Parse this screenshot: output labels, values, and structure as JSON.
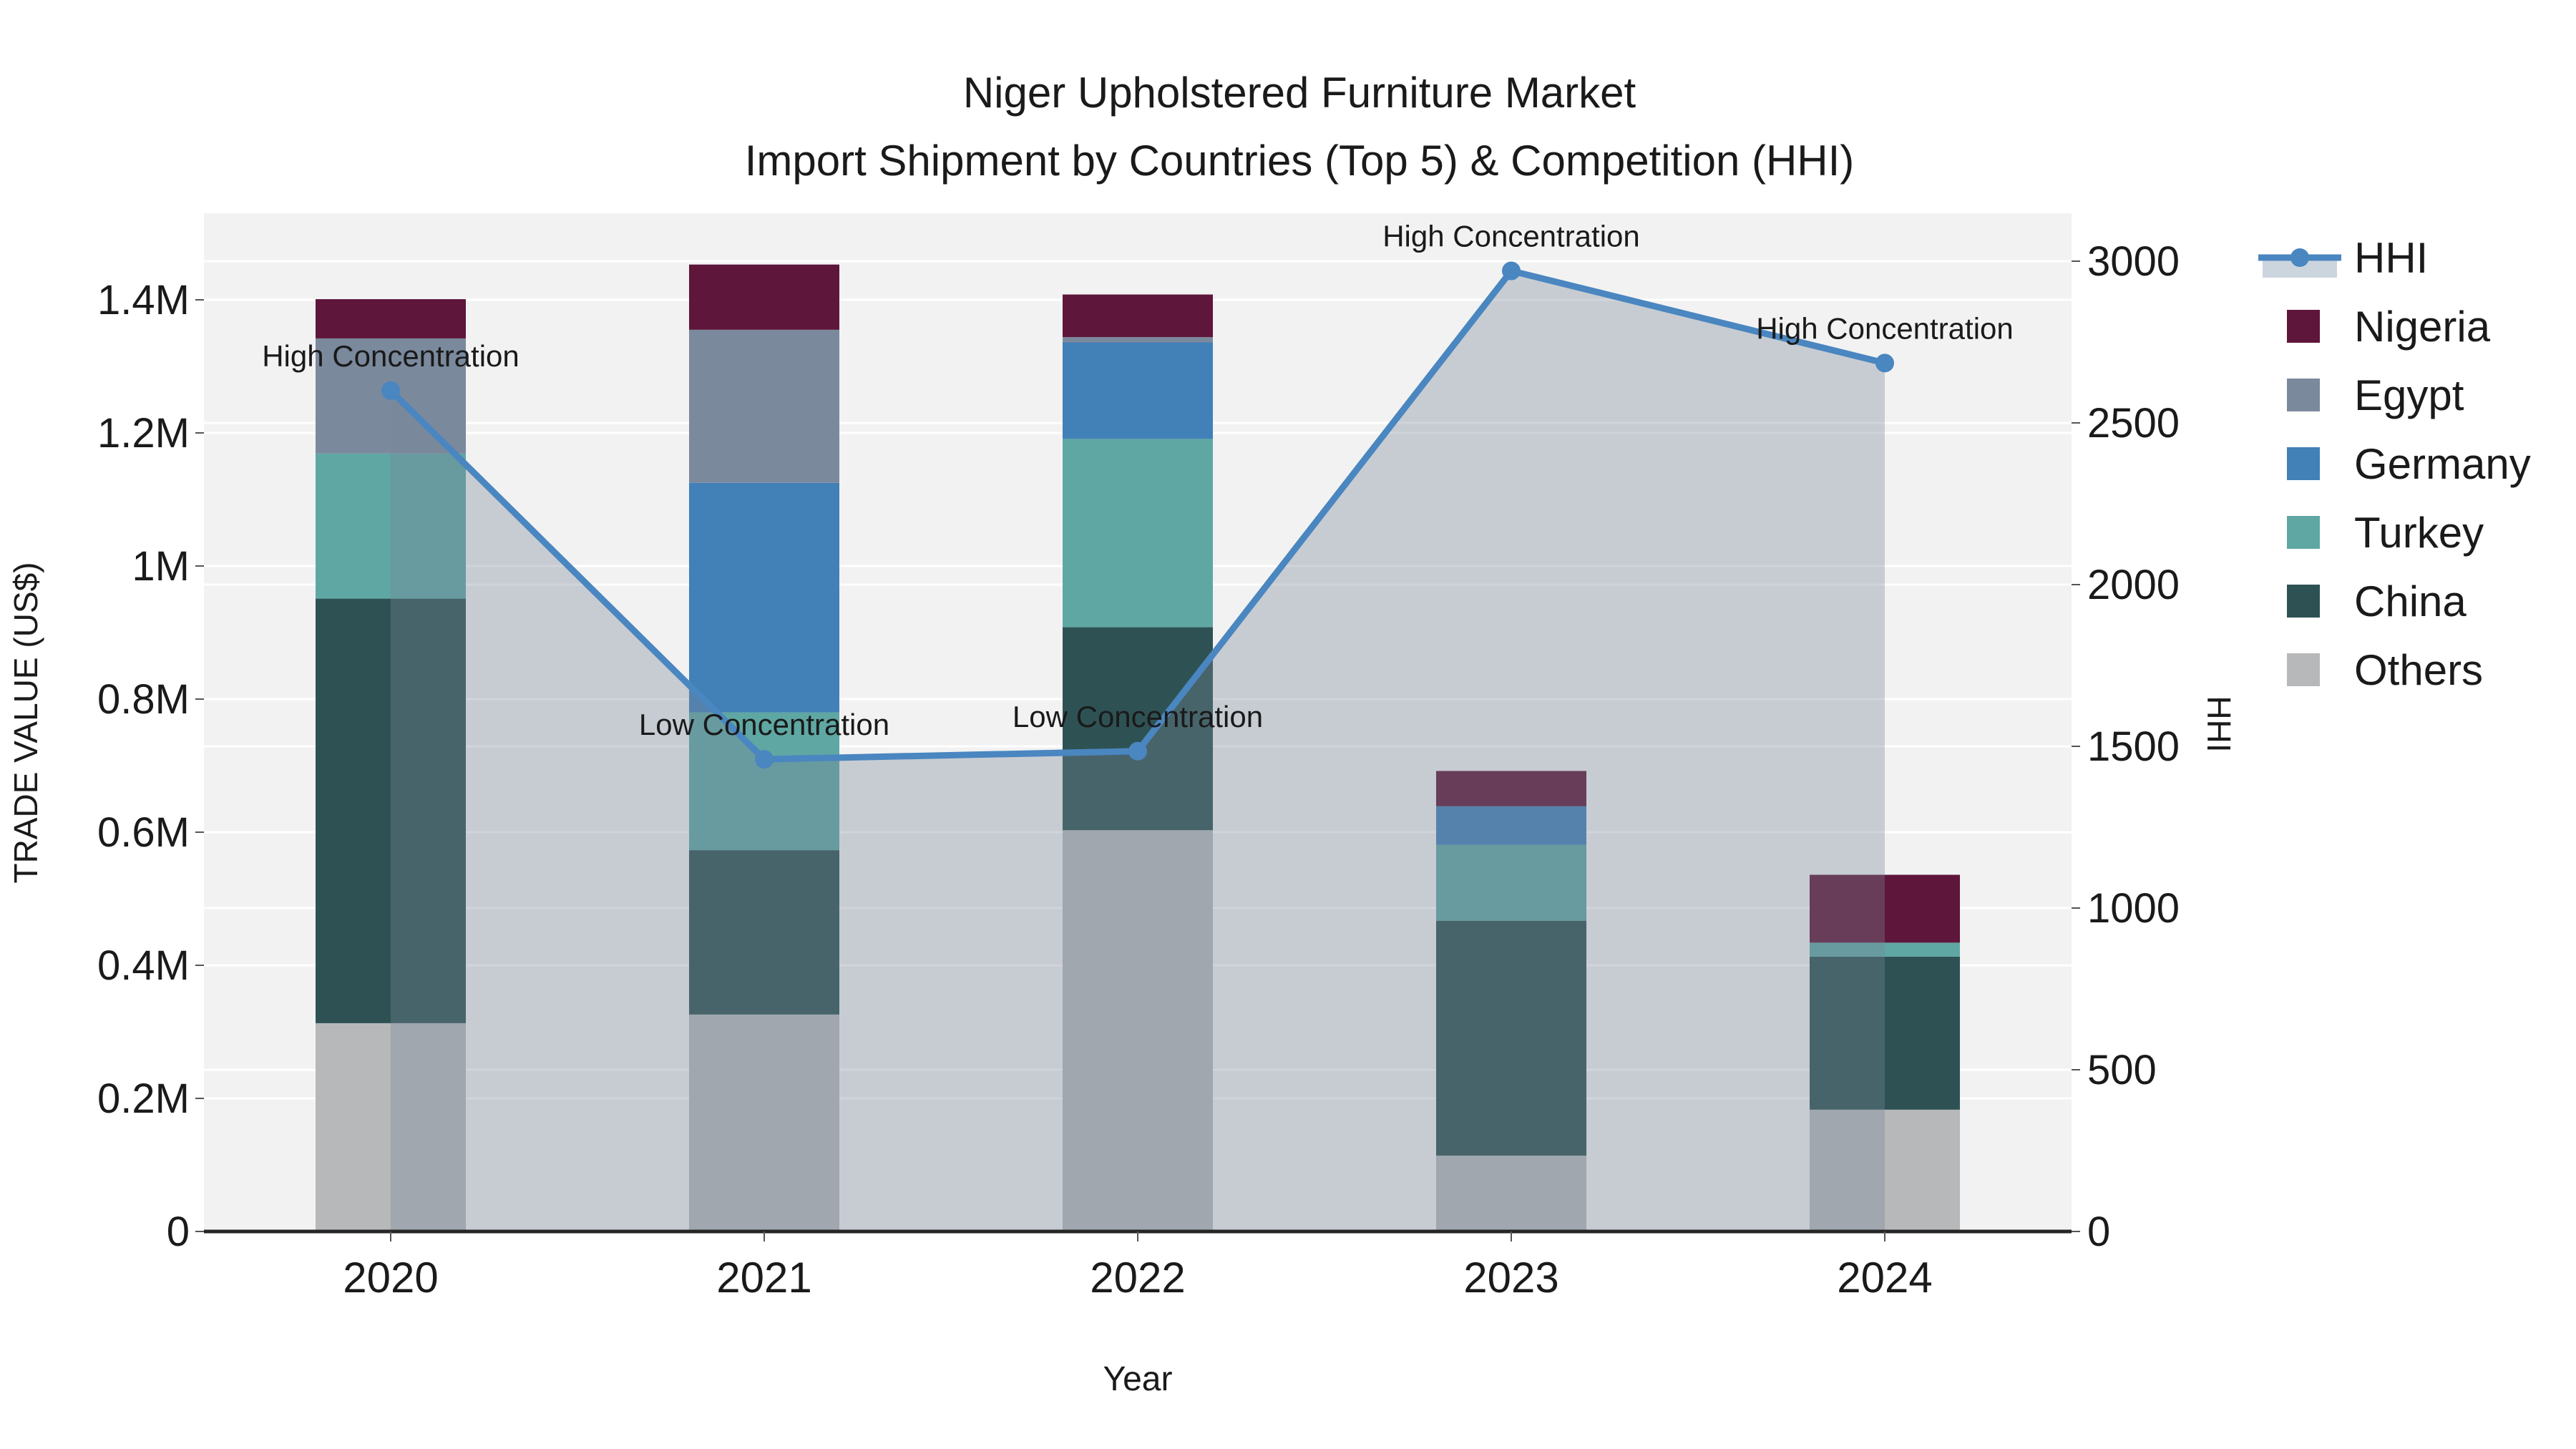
{
  "chart_data": {
    "type": "combo: stacked-bar + line",
    "title_line1": "Niger Upholstered Furniture Market",
    "title_line2": "Import Shipment by Countries (Top 5) & Competition (HHI)",
    "xlabel": "Year",
    "ylabel_left": "TRADE VALUE (US$)",
    "ylabel_right": "HHI",
    "categories": [
      "2020",
      "2021",
      "2022",
      "2023",
      "2024"
    ],
    "series": [
      {
        "name": "Others",
        "color": "#b6b8ba",
        "values": [
          313000,
          326000,
          603000,
          114000,
          183000
        ]
      },
      {
        "name": "China",
        "color": "#2e5254",
        "values": [
          638000,
          247000,
          305000,
          353000,
          230000
        ]
      },
      {
        "name": "Turkey",
        "color": "#5fa7a3",
        "values": [
          218000,
          207000,
          283000,
          114000,
          21000
        ]
      },
      {
        "name": "Germany",
        "color": "#4280b8",
        "values": [
          0,
          345000,
          145000,
          58000,
          0
        ]
      },
      {
        "name": "Egypt",
        "color": "#7b899d",
        "values": [
          173000,
          230000,
          8000,
          0,
          0
        ]
      },
      {
        "name": "Nigeria",
        "color": "#5e163a",
        "values": [
          59000,
          98000,
          64000,
          53000,
          102000
        ]
      }
    ],
    "line_series": {
      "name": "HHI",
      "color": "#4a86c0",
      "fill_color": "rgba(119,136,153,0.35)",
      "values": [
        2600,
        1460,
        1485,
        2970,
        2685
      ]
    },
    "annotations": [
      {
        "text": "High Concentration",
        "year": "2020"
      },
      {
        "text": "Low Concentration",
        "year": "2021"
      },
      {
        "text": "Low Concentration",
        "year": "2022"
      },
      {
        "text": "High Concentration",
        "year": "2023"
      },
      {
        "text": "High Concentration",
        "year": "2024"
      }
    ],
    "y_left_ticks": [
      {
        "label": "0",
        "value": 0
      },
      {
        "label": "0.2M",
        "value": 200000
      },
      {
        "label": "0.4M",
        "value": 400000
      },
      {
        "label": "0.6M",
        "value": 600000
      },
      {
        "label": "0.8M",
        "value": 800000
      },
      {
        "label": "1M",
        "value": 1000000
      },
      {
        "label": "1.2M",
        "value": 1200000
      },
      {
        "label": "1.4M",
        "value": 1400000
      }
    ],
    "y_right_ticks": [
      {
        "label": "0",
        "value": 0
      },
      {
        "label": "500",
        "value": 500
      },
      {
        "label": "1000",
        "value": 1000
      },
      {
        "label": "1500",
        "value": 1500
      },
      {
        "label": "2000",
        "value": 2000
      },
      {
        "label": "2500",
        "value": 2500
      },
      {
        "label": "3000",
        "value": 3000
      }
    ],
    "legend_order": [
      "HHI",
      "Nigeria",
      "Egypt",
      "Germany",
      "Turkey",
      "China",
      "Others"
    ],
    "style": {
      "plot_bg": "#f2f2f2",
      "grid_color": "#ffffff",
      "spine_color": "#262626",
      "text_color": "#1a1a1a",
      "hhi_legend_patch": "#ccd4dd"
    }
  }
}
